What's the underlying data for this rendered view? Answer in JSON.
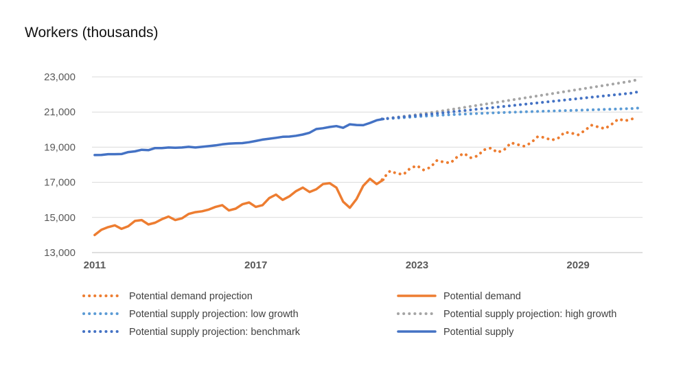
{
  "chart_data": {
    "type": "line",
    "title": "Workers (thousands)",
    "xlabel": "",
    "ylabel": "",
    "xlim": [
      2010.9,
      2031.4
    ],
    "ylim": [
      13000,
      23000
    ],
    "y_ticks": [
      {
        "value": 13000,
        "label": "13,000"
      },
      {
        "value": 15000,
        "label": "15,000"
      },
      {
        "value": 17000,
        "label": "17,000"
      },
      {
        "value": 19000,
        "label": "19,000"
      },
      {
        "value": 21000,
        "label": "21,000"
      },
      {
        "value": 23000,
        "label": "23,000"
      }
    ],
    "x_ticks": [
      {
        "value": 2011,
        "label": "2011"
      },
      {
        "value": 2017,
        "label": "2017"
      },
      {
        "value": 2023,
        "label": "2023"
      },
      {
        "value": 2029,
        "label": "2029"
      }
    ],
    "grid": "horizontal",
    "legend_position": "bottom",
    "colors": {
      "demand": "#ED7D31",
      "supply": "#4472C4",
      "low_growth": "#5B9BD5",
      "high_growth": "#A5A5A5"
    },
    "series": [
      {
        "name": "Potential demand projection",
        "key": "demand_projection",
        "style": "dotted",
        "color": "#ED7D31",
        "x": [
          2021.7,
          2022.0,
          2022.25,
          2022.5,
          2022.75,
          2023.0,
          2023.25,
          2023.5,
          2023.75,
          2024.0,
          2024.25,
          2024.5,
          2024.75,
          2025.0,
          2025.25,
          2025.5,
          2025.75,
          2026.0,
          2026.25,
          2026.5,
          2026.75,
          2027.0,
          2027.25,
          2027.5,
          2027.75,
          2028.0,
          2028.25,
          2028.5,
          2028.75,
          2029.0,
          2029.25,
          2029.5,
          2029.75,
          2030.0,
          2030.25,
          2030.5,
          2030.75,
          2031.0,
          2031.2
        ],
        "y": [
          17150,
          17650,
          17500,
          17450,
          17800,
          17950,
          17700,
          17850,
          18250,
          18150,
          18100,
          18450,
          18650,
          18400,
          18500,
          18850,
          18950,
          18700,
          18850,
          19250,
          19150,
          19050,
          19250,
          19600,
          19550,
          19400,
          19500,
          19850,
          19800,
          19700,
          19950,
          20250,
          20150,
          20050,
          20300,
          20600,
          20500,
          20600,
          20700
        ]
      },
      {
        "name": "Potential demand",
        "key": "demand",
        "style": "solid",
        "color": "#ED7D31",
        "x": [
          2011.0,
          2011.25,
          2011.5,
          2011.75,
          2012.0,
          2012.25,
          2012.5,
          2012.75,
          2013.0,
          2013.25,
          2013.5,
          2013.75,
          2014.0,
          2014.25,
          2014.5,
          2014.75,
          2015.0,
          2015.25,
          2015.5,
          2015.75,
          2016.0,
          2016.25,
          2016.5,
          2016.75,
          2017.0,
          2017.25,
          2017.5,
          2017.75,
          2018.0,
          2018.25,
          2018.5,
          2018.75,
          2019.0,
          2019.25,
          2019.5,
          2019.75,
          2020.0,
          2020.25,
          2020.5,
          2020.75,
          2021.0,
          2021.25,
          2021.5,
          2021.75
        ],
        "y": [
          14000,
          14300,
          14450,
          14550,
          14350,
          14500,
          14800,
          14850,
          14600,
          14700,
          14900,
          15050,
          14850,
          14950,
          15200,
          15300,
          15350,
          15450,
          15600,
          15700,
          15400,
          15500,
          15750,
          15850,
          15600,
          15700,
          16100,
          16300,
          16000,
          16200,
          16500,
          16700,
          16450,
          16600,
          16900,
          16950,
          16700,
          15900,
          15550,
          16050,
          16800,
          17200,
          16900,
          17150
        ]
      },
      {
        "name": "Potential supply projection: low growth",
        "key": "supply_low",
        "style": "dotted",
        "color": "#5B9BD5",
        "x": [
          2021.7,
          2022.5,
          2023.0,
          2024.0,
          2025.0,
          2026.0,
          2027.0,
          2028.0,
          2029.0,
          2030.0,
          2031.0,
          2031.3
        ],
        "y": [
          20600,
          20680,
          20740,
          20830,
          20900,
          20960,
          21010,
          21060,
          21100,
          21150,
          21200,
          21230
        ]
      },
      {
        "name": "Potential supply projection: high growth",
        "key": "supply_high",
        "style": "dotted",
        "color": "#A5A5A5",
        "x": [
          2021.7,
          2023.0,
          2024.0,
          2025.0,
          2026.0,
          2027.0,
          2028.0,
          2029.0,
          2030.0,
          2031.0,
          2031.3
        ],
        "y": [
          20600,
          20850,
          21080,
          21320,
          21560,
          21800,
          22040,
          22280,
          22520,
          22760,
          22880
        ]
      },
      {
        "name": "Potential supply projection: benchmark",
        "key": "supply_benchmark",
        "style": "dotted",
        "color": "#4472C4",
        "x": [
          2021.7,
          2023.0,
          2024.0,
          2025.0,
          2026.0,
          2027.0,
          2028.0,
          2029.0,
          2030.0,
          2031.0,
          2031.3
        ],
        "y": [
          20600,
          20800,
          20960,
          21120,
          21280,
          21440,
          21600,
          21760,
          21920,
          22080,
          22170
        ]
      },
      {
        "name": "Potential supply",
        "key": "supply",
        "style": "solid",
        "color": "#4472C4",
        "x": [
          2011.0,
          2011.25,
          2011.5,
          2011.75,
          2012.0,
          2012.25,
          2012.5,
          2012.75,
          2013.0,
          2013.25,
          2013.5,
          2013.75,
          2014.0,
          2014.25,
          2014.5,
          2014.75,
          2015.0,
          2015.25,
          2015.5,
          2015.75,
          2016.0,
          2016.25,
          2016.5,
          2016.75,
          2017.0,
          2017.25,
          2017.5,
          2017.75,
          2018.0,
          2018.25,
          2018.5,
          2018.75,
          2019.0,
          2019.25,
          2019.5,
          2019.75,
          2020.0,
          2020.25,
          2020.5,
          2020.75,
          2021.0,
          2021.25,
          2021.5,
          2021.75
        ],
        "y": [
          18550,
          18560,
          18600,
          18600,
          18610,
          18720,
          18760,
          18850,
          18830,
          18950,
          18950,
          18980,
          18970,
          18980,
          19020,
          18980,
          19020,
          19060,
          19100,
          19160,
          19200,
          19220,
          19230,
          19280,
          19350,
          19430,
          19480,
          19530,
          19590,
          19600,
          19650,
          19720,
          19820,
          20030,
          20080,
          20150,
          20200,
          20100,
          20300,
          20260,
          20250,
          20380,
          20530,
          20600
        ]
      }
    ],
    "legend": [
      {
        "label": "Potential demand projection",
        "series": "demand_projection"
      },
      {
        "label": "Potential demand",
        "series": "demand"
      },
      {
        "label": "Potential supply projection: low growth",
        "series": "supply_low"
      },
      {
        "label": "Potential supply projection: high growth",
        "series": "supply_high"
      },
      {
        "label": "Potential supply projection: benchmark",
        "series": "supply_benchmark"
      },
      {
        "label": "Potential supply",
        "series": "supply"
      }
    ]
  }
}
